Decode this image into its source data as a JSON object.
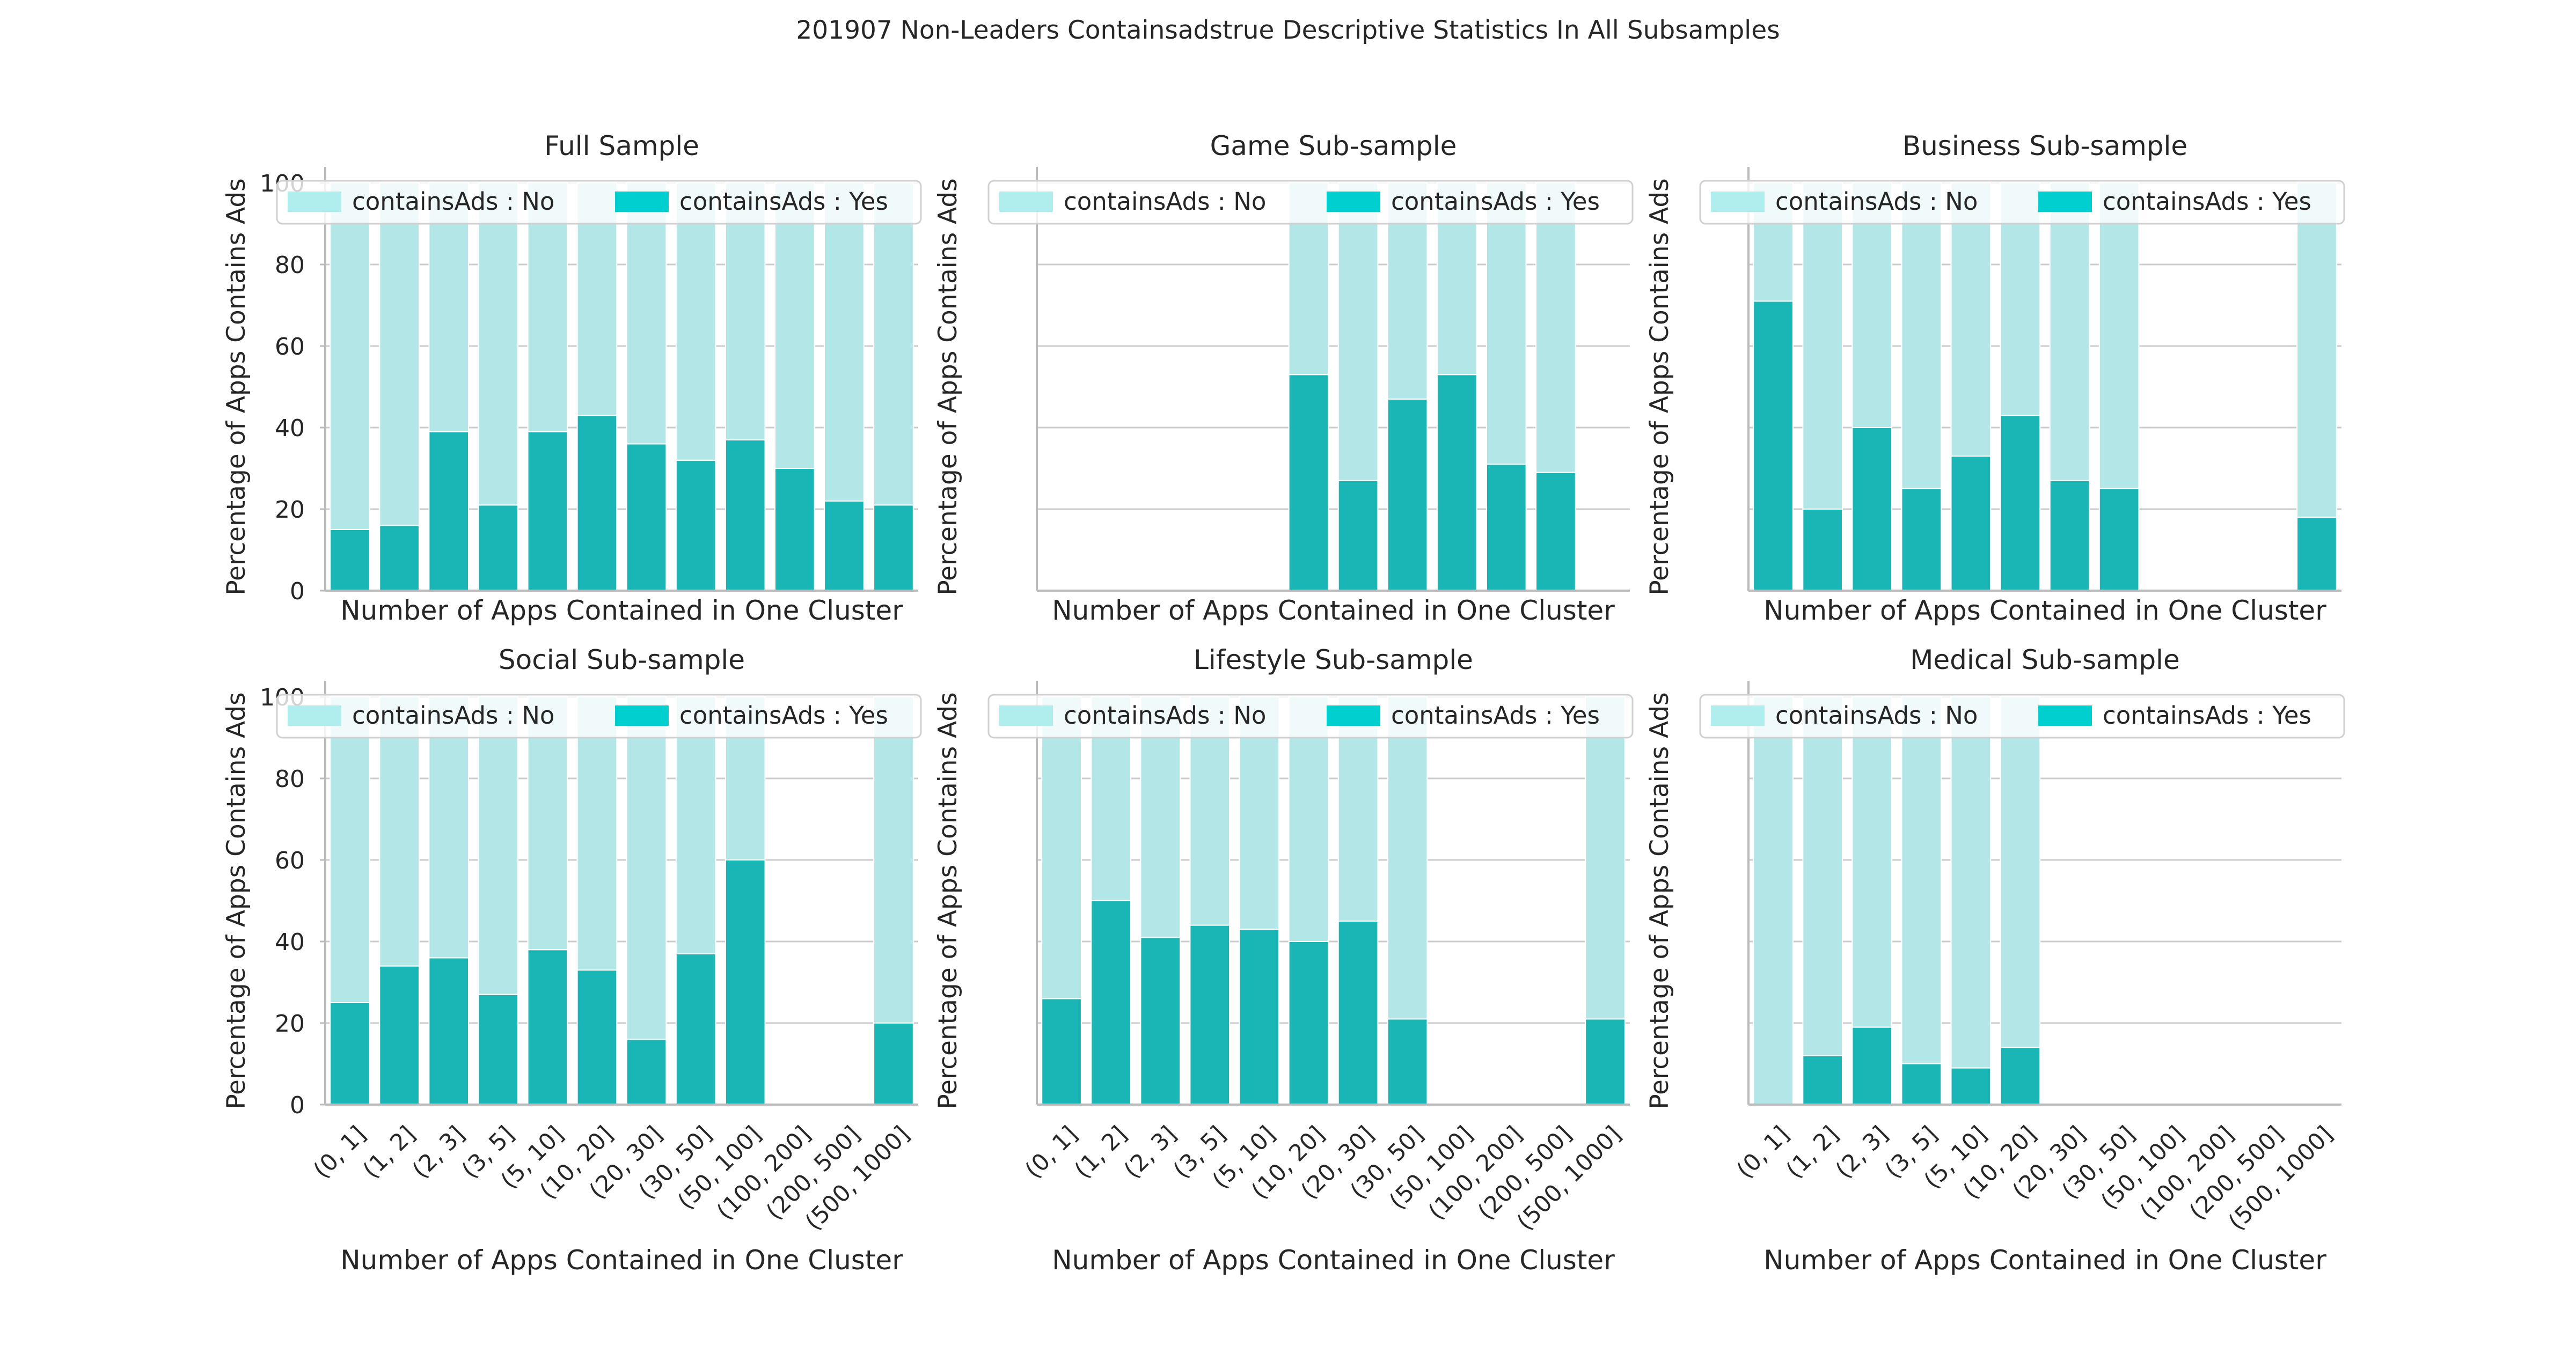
{
  "figure": {
    "title": "201907 Non-Leaders Containsadstrue Descriptive Statistics In All Subsamples"
  },
  "colors": {
    "no": "#b3e6e6",
    "yes": "#1ab5b5",
    "legend_no": "#b0eded",
    "legend_yes": "#00cfcf",
    "grid": "#cccccc",
    "axis": "#bbbbbb"
  },
  "legend": {
    "no_label": "containsAds : No",
    "yes_label": "containsAds : Yes"
  },
  "categories": [
    "(0, 1]",
    "(1, 2]",
    "(2, 3]",
    "(3, 5]",
    "(5, 10]",
    "(10, 20]",
    "(20, 30]",
    "(30, 50]",
    "(50, 100]",
    "(100, 200]",
    "(200, 500]",
    "(500, 1000]"
  ],
  "chart_data": [
    {
      "type": "bar",
      "stacked": true,
      "title": "Full Sample",
      "xlabel": "Number of Apps Contained in One Cluster",
      "ylabel": "Percentage of Apps Contains Ads",
      "ylim": [
        0,
        100
      ],
      "yticks": [
        "0",
        "20",
        "40",
        "60",
        "80",
        "100"
      ],
      "show_xticklabels": false,
      "grid": true,
      "legend_position": "top",
      "series": [
        {
          "name": "containsAds : No",
          "values": [
            85,
            84,
            61,
            79,
            61,
            57,
            64,
            68,
            63,
            70,
            78,
            79
          ]
        },
        {
          "name": "containsAds : Yes",
          "values": [
            15,
            16,
            39,
            21,
            39,
            43,
            36,
            32,
            37,
            30,
            22,
            21
          ]
        }
      ]
    },
    {
      "type": "bar",
      "stacked": true,
      "title": "Game Sub-sample",
      "xlabel": "Number of Apps Contained in One Cluster",
      "ylabel": "Percentage of Apps Contains Ads",
      "ylim": [
        0,
        100
      ],
      "yticks": [],
      "show_xticklabels": false,
      "grid": true,
      "legend_position": "top",
      "series": [
        {
          "name": "containsAds : No",
          "values": [
            null,
            null,
            null,
            null,
            null,
            47,
            73,
            53,
            47,
            69,
            71,
            null
          ]
        },
        {
          "name": "containsAds : Yes",
          "values": [
            null,
            null,
            null,
            null,
            null,
            53,
            27,
            47,
            53,
            31,
            29,
            null
          ]
        }
      ]
    },
    {
      "type": "bar",
      "stacked": true,
      "title": "Business Sub-sample",
      "xlabel": "Number of Apps Contained in One Cluster",
      "ylabel": "Percentage of Apps Contains Ads",
      "ylim": [
        0,
        100
      ],
      "yticks": [],
      "show_xticklabels": false,
      "grid": true,
      "legend_position": "top",
      "series": [
        {
          "name": "containsAds : No",
          "values": [
            29,
            80,
            60,
            75,
            67,
            57,
            73,
            75,
            null,
            null,
            null,
            82
          ]
        },
        {
          "name": "containsAds : Yes",
          "values": [
            71,
            20,
            40,
            25,
            33,
            43,
            27,
            25,
            null,
            null,
            null,
            18
          ]
        }
      ]
    },
    {
      "type": "bar",
      "stacked": true,
      "title": "Social Sub-sample",
      "xlabel": "Number of Apps Contained in One Cluster",
      "ylabel": "Percentage of Apps Contains Ads",
      "ylim": [
        0,
        100
      ],
      "yticks": [
        "0",
        "20",
        "40",
        "60",
        "80",
        "100"
      ],
      "show_xticklabels": true,
      "grid": true,
      "legend_position": "top",
      "series": [
        {
          "name": "containsAds : No",
          "values": [
            75,
            66,
            64,
            73,
            62,
            67,
            84,
            63,
            40,
            null,
            null,
            80
          ]
        },
        {
          "name": "containsAds : Yes",
          "values": [
            25,
            34,
            36,
            27,
            38,
            33,
            16,
            37,
            60,
            null,
            null,
            20
          ]
        }
      ]
    },
    {
      "type": "bar",
      "stacked": true,
      "title": "Lifestyle Sub-sample",
      "xlabel": "Number of Apps Contained in One Cluster",
      "ylabel": "Percentage of Apps Contains Ads",
      "ylim": [
        0,
        100
      ],
      "yticks": [],
      "show_xticklabels": true,
      "grid": true,
      "legend_position": "top",
      "series": [
        {
          "name": "containsAds : No",
          "values": [
            74,
            50,
            59,
            56,
            57,
            60,
            55,
            79,
            null,
            null,
            null,
            79
          ]
        },
        {
          "name": "containsAds : Yes",
          "values": [
            26,
            50,
            41,
            44,
            43,
            40,
            45,
            21,
            null,
            null,
            null,
            21
          ]
        }
      ]
    },
    {
      "type": "bar",
      "stacked": true,
      "title": "Medical Sub-sample",
      "xlabel": "Number of Apps Contained in One Cluster",
      "ylabel": "Percentage of Apps Contains Ads",
      "ylim": [
        0,
        100
      ],
      "yticks": [],
      "show_xticklabels": true,
      "grid": true,
      "legend_position": "top",
      "series": [
        {
          "name": "containsAds : No",
          "values": [
            100,
            88,
            81,
            90,
            91,
            86,
            null,
            null,
            null,
            null,
            null,
            null
          ]
        },
        {
          "name": "containsAds : Yes",
          "values": [
            0,
            12,
            19,
            10,
            9,
            14,
            null,
            null,
            null,
            null,
            null,
            null
          ]
        }
      ]
    }
  ]
}
